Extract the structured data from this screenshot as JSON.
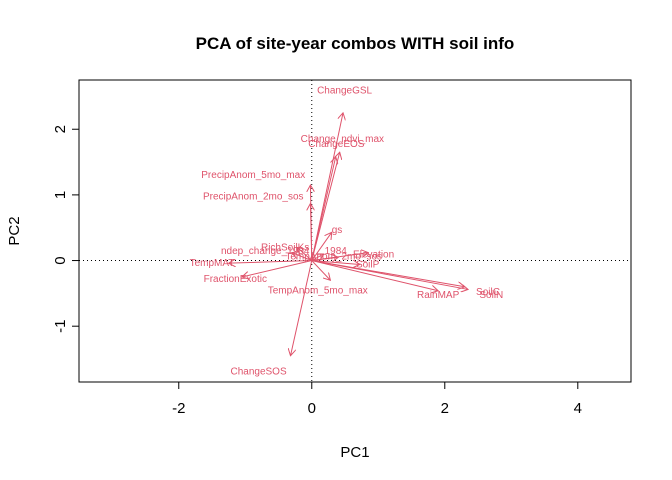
{
  "chart_data": {
    "type": "scatter",
    "subtype": "pca-biplot-loadings",
    "title": "PCA of site-year combos WITH soil info",
    "xlabel": "PC1",
    "ylabel": "PC2",
    "xlim": [
      -3.5,
      4.8
    ],
    "ylim": [
      -1.85,
      2.75
    ],
    "xticks": [
      -2,
      0,
      2,
      4
    ],
    "yticks": [
      -1,
      0,
      1,
      2
    ],
    "xtick_labels": [
      "-2",
      "0",
      "2",
      "4"
    ],
    "ytick_labels": [
      "-1",
      "0",
      "1",
      "2"
    ],
    "reference_lines": {
      "x": 0,
      "y": 0,
      "style": "dotted"
    },
    "arrow_color": "#df536b",
    "grid": false,
    "loadings": [
      {
        "name": "ChangeGSL",
        "x": 0.47,
        "y": 2.25,
        "label_x": 0.08,
        "label_y": 2.6,
        "anchor": "start"
      },
      {
        "name": "Change_ndvi_max",
        "x": 0.42,
        "y": 1.65,
        "label_x": 0.46,
        "label_y": 1.86,
        "anchor": "middle"
      },
      {
        "name": "ChangeEOS",
        "x": 0.36,
        "y": 1.58,
        "label_x": 0.37,
        "label_y": 1.78,
        "anchor": "middle"
      },
      {
        "name": "PrecipAnom_5mo_max",
        "x": -0.02,
        "y": 1.15,
        "label_x": -0.88,
        "label_y": 1.31,
        "anchor": "middle"
      },
      {
        "name": "PrecipAnom_2mo_sos",
        "x": -0.02,
        "y": 0.87,
        "label_x": -0.88,
        "label_y": 0.98,
        "anchor": "middle"
      },
      {
        "name": "gs",
        "x": 0.3,
        "y": 0.43,
        "label_x": 0.38,
        "label_y": 0.47,
        "anchor": "middle"
      },
      {
        "name": "RichSoilKs",
        "x": -0.22,
        "y": 0.2,
        "label_x": -0.4,
        "label_y": 0.21,
        "anchor": "middle"
      },
      {
        "name": "ndep_change_1984",
        "x": -0.3,
        "y": 0.12,
        "label_x": -0.7,
        "label_y": 0.15,
        "anchor": "middle"
      },
      {
        "name": "1984",
        "x": 0.18,
        "y": 0.1,
        "label_x": 0.36,
        "label_y": 0.15,
        "anchor": "middle"
      },
      {
        "name": "TempAnom_2mo_sos",
        "x": 0.4,
        "y": 0.05,
        "label_x": 0.33,
        "label_y": 0.07,
        "anchor": "middle"
      },
      {
        "name": "Elevation",
        "x": 0.85,
        "y": 0.12,
        "label_x": 0.93,
        "label_y": 0.1,
        "anchor": "middle"
      },
      {
        "name": "SoilP",
        "x": 0.72,
        "y": -0.06,
        "label_x": 0.84,
        "label_y": -0.05,
        "anchor": "middle"
      },
      {
        "name": "TempMAT",
        "x": -1.25,
        "y": -0.04,
        "label_x": -1.5,
        "label_y": -0.03,
        "anchor": "middle"
      },
      {
        "name": "FractionExotic",
        "x": -1.05,
        "y": -0.25,
        "label_x": -1.15,
        "label_y": -0.27,
        "anchor": "middle"
      },
      {
        "name": "TempAnom_5mo_max",
        "x": 0.28,
        "y": -0.3,
        "label_x": 0.09,
        "label_y": -0.45,
        "anchor": "middle"
      },
      {
        "name": "RainMAP",
        "x": 1.9,
        "y": -0.46,
        "label_x": 1.9,
        "label_y": -0.52,
        "anchor": "middle"
      },
      {
        "name": "SoilC",
        "x": 2.3,
        "y": -0.4,
        "label_x": 2.65,
        "label_y": -0.47,
        "anchor": "middle"
      },
      {
        "name": "SoilN",
        "x": 2.35,
        "y": -0.44,
        "label_x": 2.7,
        "label_y": -0.52,
        "anchor": "middle"
      },
      {
        "name": "ChangeSOS",
        "x": -0.32,
        "y": -1.45,
        "label_x": -0.8,
        "label_y": -1.68,
        "anchor": "middle"
      }
    ]
  }
}
